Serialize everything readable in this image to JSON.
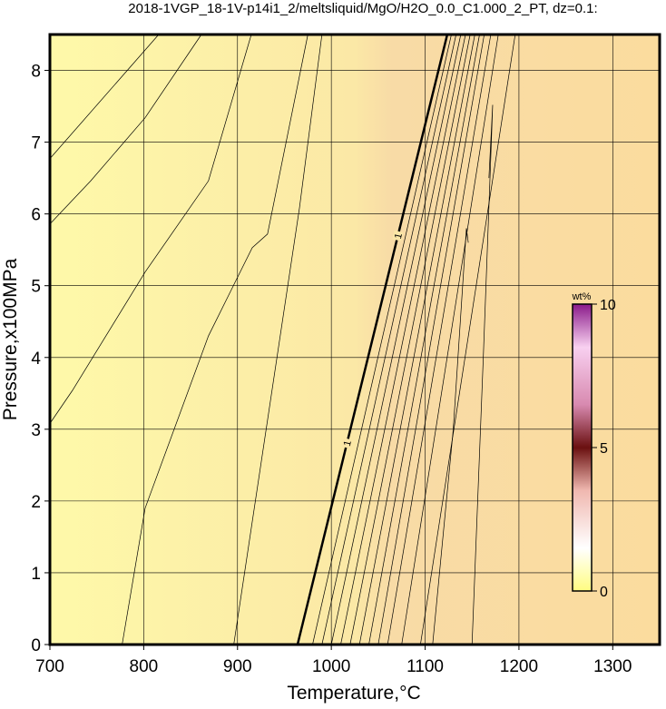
{
  "chart_data": {
    "type": "contour",
    "title": "2018-1VGP_18-1V-p14i1_2/meltsliquid/MgO/H2O_0.0_C1.000_2_PT, dz=0.1:",
    "xlabel": "Temperature,°C",
    "ylabel": "Pressure,x100MPa",
    "xlim": [
      700,
      1350
    ],
    "ylim": [
      0,
      8.5
    ],
    "xticks": [
      700,
      800,
      900,
      1000,
      1100,
      1200,
      1300
    ],
    "yticks": [
      0,
      1,
      2,
      3,
      4,
      5,
      6,
      7,
      8
    ],
    "grid": true,
    "line_color": "#000000",
    "labeled_contour": {
      "level": "1",
      "x": [
        964,
        1123.6
      ],
      "y": [
        0,
        8.5
      ]
    },
    "contours": [
      {
        "x": [
          700,
          816
        ],
        "y": [
          6.77,
          8.5
        ]
      },
      {
        "x": [
          700,
          743.5,
          801.5,
          861.5
        ],
        "y": [
          5.86,
          6.46,
          7.34,
          8.5
        ]
      },
      {
        "x": [
          700,
          724,
          801.5,
          869,
          914.7
        ],
        "y": [
          3.08,
          3.54,
          5.19,
          6.46,
          8.5
        ]
      },
      {
        "x": [
          777,
          801.5,
          869,
          915.7,
          932,
          975
        ],
        "y": [
          0,
          1.9,
          4.3,
          5.53,
          5.72,
          8.5
        ]
      },
      {
        "x": [
          896,
          966,
          990
        ],
        "y": [
          0,
          6.08,
          8.5
        ]
      },
      {
        "x": [
          980,
          1128
        ],
        "y": [
          0,
          8.5
        ]
      },
      {
        "x": [
          990,
          1133
        ],
        "y": [
          0,
          8.5
        ]
      },
      {
        "x": [
          1000,
          1138
        ],
        "y": [
          0,
          8.5
        ]
      },
      {
        "x": [
          1010,
          1143
        ],
        "y": [
          0,
          8.5
        ]
      },
      {
        "x": [
          1020,
          1148
        ],
        "y": [
          0,
          8.5
        ]
      },
      {
        "x": [
          1030,
          1153
        ],
        "y": [
          0,
          8.5
        ]
      },
      {
        "x": [
          1040,
          1158
        ],
        "y": [
          0,
          8.5
        ]
      },
      {
        "x": [
          1050,
          1163
        ],
        "y": [
          0,
          8.5
        ]
      },
      {
        "x": [
          1060,
          1170
        ],
        "y": [
          0,
          8.5
        ]
      },
      {
        "x": [
          1075,
          1178
        ],
        "y": [
          0,
          8.5
        ]
      },
      {
        "x": [
          1095,
          1196
        ],
        "y": [
          0,
          8.5
        ]
      },
      {
        "x": [
          1150,
          1162,
          1170,
          1172,
          1168
        ],
        "y": [
          0,
          4,
          6.8,
          7.52,
          6.5
        ]
      },
      {
        "x": [
          1108,
          1130,
          1144,
          1146
        ],
        "y": [
          0,
          3,
          5.8,
          5.6
        ]
      }
    ],
    "colorbar": {
      "label": "wt%",
      "lim": [
        0,
        10
      ],
      "ticks": [
        0,
        5,
        10
      ]
    }
  }
}
